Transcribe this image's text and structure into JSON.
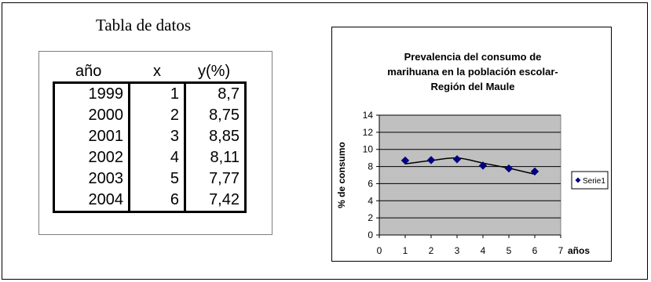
{
  "table": {
    "title": "Tabla de datos",
    "headers": [
      "año",
      "x",
      "y(%)"
    ],
    "rows": [
      [
        "1999",
        "1",
        "8,7"
      ],
      [
        "2000",
        "2",
        "8,75"
      ],
      [
        "2001",
        "3",
        "8,85"
      ],
      [
        "2002",
        "4",
        "8,11"
      ],
      [
        "2003",
        "5",
        "7,77"
      ],
      [
        "2004",
        "6",
        "7,42"
      ]
    ]
  },
  "chart_data": {
    "type": "scatter",
    "title_lines": [
      "Prevalencia del consumo de",
      "marihuana en la población escolar-",
      "Región del Maule"
    ],
    "xlabel": "años",
    "ylabel": "% de consumo",
    "xlim": [
      0,
      7
    ],
    "ylim": [
      0,
      14
    ],
    "xticks": [
      "0",
      "1",
      "2",
      "3",
      "4",
      "5",
      "6",
      "7"
    ],
    "yticks": [
      "0",
      "2",
      "4",
      "6",
      "8",
      "10",
      "12",
      "14"
    ],
    "grid": true,
    "plot_background": "#c0c0c0",
    "marker_color": "#000080",
    "legend_position": "right",
    "series": [
      {
        "name": "Serie1",
        "x": [
          1,
          2,
          3,
          4,
          5,
          6
        ],
        "y": [
          8.7,
          8.75,
          8.85,
          8.11,
          7.77,
          7.42
        ]
      }
    ],
    "trendline": {
      "x": [
        1,
        2,
        3,
        4,
        5,
        6
      ],
      "y": [
        8.3,
        8.7,
        9.0,
        8.4,
        7.8,
        7.1
      ]
    }
  }
}
